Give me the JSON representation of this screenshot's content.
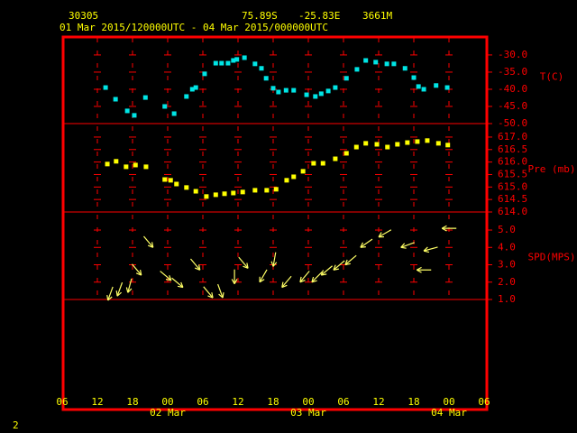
{
  "header": {
    "station": "30305",
    "lat": "75.89S",
    "lon": "-25.83E",
    "elev": "3661M",
    "period": "01 Mar 2015/120000UTC - 04 Mar 2015/000000UTC",
    "page": "2"
  },
  "x_axis": {
    "xlim": [
      6,
      78
    ],
    "xticks": [
      {
        "value": 6,
        "label": "06"
      },
      12,
      18,
      {
        "value": 24,
        "label": "00"
      },
      {
        "value": 30,
        "label": "06"
      },
      {
        "value": 36,
        "label": "12"
      },
      {
        "value": 42,
        "label": "18"
      },
      {
        "value": 48,
        "label": "00"
      },
      {
        "value": 54,
        "label": "06"
      },
      {
        "value": 60,
        "label": "12"
      },
      {
        "value": 66,
        "label": "18"
      },
      {
        "value": 72,
        "label": "00"
      },
      {
        "value": 78,
        "label": "06"
      }
    ],
    "dates": [
      {
        "value": 24,
        "label": "02 Mar"
      },
      {
        "value": 48,
        "label": "03 Mar"
      },
      {
        "value": 72,
        "label": "04 Mar"
      }
    ]
  },
  "chart_data": [
    {
      "type": "scatter",
      "y_label": "T(C)",
      "color": "#00e5e5",
      "ylim": [
        -50,
        -24.5
      ],
      "yticks": [
        {
          "value": -50,
          "label": "-50.0"
        },
        {
          "value": -45,
          "label": "-45.0"
        },
        {
          "value": -40,
          "label": "-40.0"
        },
        {
          "value": -35,
          "label": "-35.0"
        },
        {
          "value": -30,
          "label": "-30.0"
        }
      ],
      "x": [
        13.4,
        15.1,
        17.1,
        18.3,
        20.2,
        23.5,
        25.1,
        27.2,
        28.2,
        28.8,
        30.3,
        32.2,
        33.2,
        34.3,
        35.2,
        35.8,
        37.1,
        38.9,
        40.0,
        40.8,
        42.0,
        42.9,
        44.2,
        45.5,
        47.7,
        49.2,
        50.2,
        51.4,
        52.6,
        54.5,
        56.3,
        57.8,
        59.5,
        61.4,
        62.6,
        64.5,
        66.0,
        66.8,
        67.7,
        69.8,
        71.7
      ],
      "values": [
        -39.5,
        -42.9,
        -46.3,
        -47.6,
        -42.4,
        -45.0,
        -47.1,
        -42.1,
        -40.0,
        -39.5,
        -35.5,
        -32.4,
        -32.4,
        -32.4,
        -31.6,
        -31.3,
        -30.8,
        -32.6,
        -33.9,
        -36.8,
        -39.7,
        -40.8,
        -40.3,
        -40.3,
        -41.6,
        -42.1,
        -41.3,
        -40.5,
        -39.5,
        -36.8,
        -34.2,
        -31.6,
        -32.1,
        -32.6,
        -32.6,
        -33.9,
        -36.6,
        -39.2,
        -40.0,
        -38.9,
        -39.5
      ]
    },
    {
      "type": "scatter",
      "y_label": "Pre (mb)",
      "color": "#ffff00",
      "ylim": [
        614,
        617.54
      ],
      "yticks": [
        {
          "value": 614,
          "label": "614.0"
        },
        614.5,
        {
          "value": 615,
          "label": "615.0"
        },
        615.5,
        {
          "value": 616,
          "label": "616.0"
        },
        616.5,
        {
          "value": 617,
          "label": "617.0"
        }
      ],
      "x": [
        13.7,
        15.2,
        16.9,
        18.5,
        20.3,
        23.5,
        24.5,
        25.5,
        27.2,
        28.8,
        30.6,
        32.2,
        33.7,
        35.2,
        36.8,
        38.9,
        40.9,
        42.5,
        44.3,
        45.5,
        47.1,
        48.9,
        50.5,
        52.6,
        54.5,
        56.2,
        57.8,
        59.7,
        61.5,
        63.2,
        64.9,
        66.6,
        68.3,
        70.2,
        71.8
      ],
      "values": [
        615.92,
        616.03,
        615.81,
        615.88,
        615.81,
        615.3,
        615.27,
        615.12,
        614.98,
        614.83,
        614.62,
        614.69,
        614.73,
        614.76,
        614.8,
        614.87,
        614.87,
        614.91,
        615.27,
        615.41,
        615.63,
        615.95,
        615.95,
        616.13,
        616.35,
        616.6,
        616.75,
        616.71,
        616.6,
        616.71,
        616.78,
        616.82,
        616.86,
        616.75,
        616.68
      ]
    },
    {
      "type": "arrows",
      "y_label": "SPD(MPS)",
      "color": "#ffff66",
      "ylim": [
        1,
        6.04
      ],
      "yticks": [
        {
          "value": 1,
          "label": "1.0"
        },
        {
          "value": 2,
          "label": "2.0"
        },
        {
          "value": 3,
          "label": "3.0"
        },
        {
          "value": 4,
          "label": "4.0"
        },
        {
          "value": 5,
          "label": "5.0"
        }
      ],
      "x": [
        13.8,
        15.4,
        17.2,
        19.5,
        21.5,
        24.6,
        26.6,
        29.5,
        31.7,
        33.4,
        35.4,
        37.7,
        39.7,
        42.0,
        43.5,
        46.6,
        48.6,
        50.2,
        52.3,
        54.3,
        56.9,
        60.0,
        63.8,
        66.5,
        67.7,
        70.8
      ],
      "values": [
        0.95,
        1.2,
        1.4,
        2.4,
        4.0,
        2.1,
        1.7,
        2.7,
        1.1,
        1.1,
        1.9,
        2.8,
        2.0,
        2.9,
        1.7,
        2.0,
        2.0,
        2.4,
        2.7,
        3.0,
        4.0,
        4.6,
        4.0,
        2.7,
        3.8,
        5.1
      ],
      "directions": [
        200,
        200,
        195,
        140,
        140,
        130,
        130,
        140,
        140,
        160,
        180,
        140,
        210,
        190,
        220,
        220,
        225,
        230,
        230,
        230,
        235,
        240,
        250,
        270,
        255,
        270
      ]
    }
  ]
}
